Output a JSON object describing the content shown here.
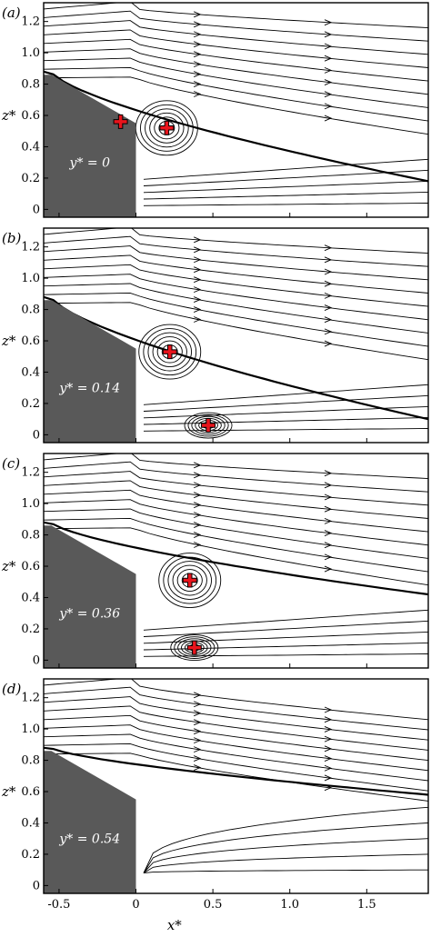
{
  "chart_data": [
    {
      "type": "streamline",
      "panel_label": "(a)",
      "annotation": "y* = 0",
      "ylabel": "z*",
      "xlabel": "",
      "xlim": [
        -0.6,
        1.9
      ],
      "ylim": [
        -0.05,
        1.32
      ],
      "yticks": [
        0,
        0.2,
        0.4,
        0.6,
        0.8,
        1.0,
        1.2
      ],
      "xticks": [],
      "critical_points": [
        {
          "x": -0.1,
          "y": 0.56
        },
        {
          "x": 0.2,
          "y": 0.52
        }
      ],
      "vortex_centers": [
        {
          "x": 0.2,
          "y": 0.52
        }
      ]
    },
    {
      "type": "streamline",
      "panel_label": "(b)",
      "annotation": "y* = 0.14",
      "ylabel": "z*",
      "xlabel": "",
      "xlim": [
        -0.6,
        1.9
      ],
      "ylim": [
        -0.05,
        1.32
      ],
      "yticks": [
        0,
        0.2,
        0.4,
        0.6,
        0.8,
        1.0,
        1.2
      ],
      "xticks": [],
      "critical_points": [
        {
          "x": 0.22,
          "y": 0.53
        },
        {
          "x": 0.47,
          "y": 0.06
        }
      ],
      "vortex_centers": [
        {
          "x": 0.22,
          "y": 0.53
        },
        {
          "x": 0.47,
          "y": 0.06
        }
      ]
    },
    {
      "type": "streamline",
      "panel_label": "(c)",
      "annotation": "y* = 0.36",
      "ylabel": "z*",
      "xlabel": "",
      "xlim": [
        -0.6,
        1.9
      ],
      "ylim": [
        -0.05,
        1.32
      ],
      "yticks": [
        0,
        0.2,
        0.4,
        0.6,
        0.8,
        1.0,
        1.2
      ],
      "xticks": [],
      "critical_points": [
        {
          "x": 0.35,
          "y": 0.51
        },
        {
          "x": 0.38,
          "y": 0.08
        }
      ],
      "vortex_centers": [
        {
          "x": 0.35,
          "y": 0.51
        },
        {
          "x": 0.38,
          "y": 0.08
        }
      ]
    },
    {
      "type": "streamline",
      "panel_label": "(d)",
      "annotation": "y* = 0.54",
      "ylabel": "z*",
      "xlabel": "x*",
      "xlim": [
        -0.6,
        1.9
      ],
      "ylim": [
        -0.05,
        1.32
      ],
      "yticks": [
        0,
        0.2,
        0.4,
        0.6,
        0.8,
        1.0,
        1.2
      ],
      "xticks": [
        -0.5,
        0,
        0.5,
        1.0,
        1.5
      ],
      "critical_points": [],
      "vortex_centers": []
    }
  ],
  "colors": {
    "body": "#595959",
    "streamline": "#000000",
    "marker": "#e8141c",
    "background": "#ffffff"
  }
}
